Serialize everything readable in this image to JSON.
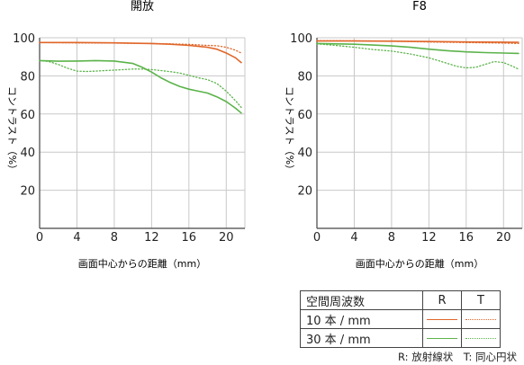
{
  "chart_data": [
    {
      "type": "line",
      "title": "開放",
      "xlabel": "画面中心からの距離（mm）",
      "ylabel": "コントラスト（%）",
      "xlim": [
        0,
        22
      ],
      "ylim": [
        0,
        100
      ],
      "xticks": [
        0,
        4,
        8,
        12,
        16,
        20
      ],
      "yticks": [
        20,
        40,
        60,
        80,
        100
      ],
      "grid": true,
      "series": [
        {
          "name": "10 本 / mm R",
          "color": "#e0662a",
          "style": "solid",
          "x": [
            0,
            4,
            8,
            12,
            14,
            16,
            18,
            19,
            20,
            21,
            21.6
          ],
          "y": [
            97.5,
            97.5,
            97.3,
            97,
            96.6,
            96,
            95,
            94,
            92,
            89.5,
            87
          ]
        },
        {
          "name": "10 本 / mm T",
          "color": "#e0662a",
          "style": "dotted",
          "x": [
            0,
            4,
            8,
            12,
            14,
            16,
            18,
            19,
            20,
            21,
            21.6
          ],
          "y": [
            97.5,
            97.3,
            97.2,
            97,
            96.8,
            96.5,
            96,
            95.8,
            95,
            93.5,
            92
          ]
        },
        {
          "name": "30 本 / mm R",
          "color": "#5bb34a",
          "style": "solid",
          "x": [
            0,
            2,
            4,
            6,
            8,
            10,
            11,
            12,
            13,
            14,
            15,
            16,
            17,
            18,
            19,
            20,
            21,
            21.6
          ],
          "y": [
            88,
            87.7,
            87.8,
            88,
            87.8,
            86.5,
            84.5,
            82,
            79,
            76.5,
            74.5,
            73,
            72,
            71,
            69,
            66.5,
            63,
            60.5
          ]
        },
        {
          "name": "30 本 / mm T",
          "color": "#5bb34a",
          "style": "dotted",
          "x": [
            0,
            1,
            2,
            3,
            4,
            5,
            6,
            7,
            8,
            9,
            10,
            11,
            12,
            13,
            14,
            15,
            16,
            17,
            18,
            19,
            20,
            21,
            21.6
          ],
          "y": [
            88,
            87.5,
            86,
            84,
            82.5,
            82.3,
            82.5,
            82.8,
            83,
            83.3,
            83.6,
            83.6,
            83.3,
            82.8,
            82.2,
            81.5,
            80.3,
            79,
            78,
            76,
            72,
            67,
            63.5
          ]
        }
      ]
    },
    {
      "type": "line",
      "title": "F8",
      "xlabel": "画面中心からの距離（mm）",
      "ylabel": "コントラスト（%）",
      "xlim": [
        0,
        22
      ],
      "ylim": [
        0,
        100
      ],
      "xticks": [
        0,
        4,
        8,
        12,
        16,
        20
      ],
      "yticks": [
        20,
        40,
        60,
        80,
        100
      ],
      "grid": true,
      "series": [
        {
          "name": "10 本 / mm R",
          "color": "#e0662a",
          "style": "solid",
          "x": [
            0,
            4,
            8,
            12,
            16,
            20,
            21.6
          ],
          "y": [
            98.3,
            98.3,
            98.2,
            98,
            97.8,
            97.7,
            97.6
          ]
        },
        {
          "name": "10 本 / mm T",
          "color": "#e0662a",
          "style": "dotted",
          "x": [
            0,
            4,
            8,
            12,
            16,
            20,
            21.6
          ],
          "y": [
            98.5,
            98.4,
            98.2,
            97.8,
            97.5,
            97.2,
            97
          ]
        },
        {
          "name": "30 本 / mm R",
          "color": "#5bb34a",
          "style": "solid",
          "x": [
            0,
            2,
            4,
            6,
            8,
            10,
            12,
            14,
            16,
            18,
            20,
            21.6
          ],
          "y": [
            97,
            96.8,
            96.6,
            96.2,
            95.7,
            95,
            94,
            93.2,
            92.6,
            92.2,
            92,
            91.8
          ]
        },
        {
          "name": "30 本 / mm T",
          "color": "#5bb34a",
          "style": "dotted",
          "x": [
            0,
            2,
            4,
            6,
            8,
            10,
            12,
            13,
            14,
            15,
            16,
            17,
            18,
            19,
            20,
            21,
            21.6
          ],
          "y": [
            96.8,
            96,
            95,
            93.8,
            93,
            91.5,
            89.5,
            88,
            86.5,
            85,
            84.2,
            84.5,
            86,
            87.5,
            87,
            85,
            83.5
          ]
        }
      ]
    }
  ],
  "legend": {
    "header": "空間周波数",
    "col_r": "R",
    "col_t": "T",
    "row_10": "10 本 / mm",
    "row_30": "30 本 / mm",
    "orange": "#e0662a",
    "green": "#5bb34a"
  },
  "caption": "R: 放射線状　T: 同心円状"
}
